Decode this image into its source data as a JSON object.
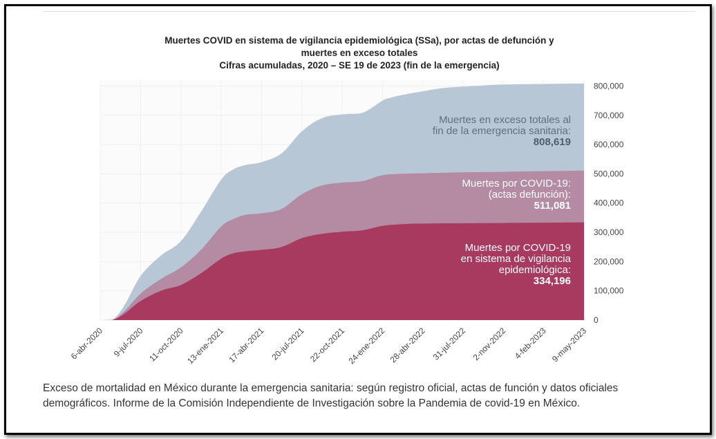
{
  "chart_data": {
    "type": "area",
    "title_lines": [
      "Muertes COVID en sistema de vigilancia epidemiológica (SSa), por actas de defunción y",
      "muertes en exceso totales",
      "Cifras acumuladas, 2020 – SE 19 de 2023 (fin de la emergencia)"
    ],
    "x_tick_labels": [
      "6-abr-2020",
      "9-jul-2020",
      "11-oct-2020",
      "13-ene-2021",
      "17-abr-2021",
      "20-jul-2021",
      "22-oct-2021",
      "24-ene-2022",
      "28-abr-2022",
      "31-jul-2022",
      "2-nov-2022",
      "4-feb-2023",
      "9-may-2023"
    ],
    "y_ticks": [
      0,
      100000,
      200000,
      300000,
      400000,
      500000,
      600000,
      700000,
      800000
    ],
    "y_tick_labels": [
      "0",
      "100,000",
      "200,000",
      "300,000",
      "400,000",
      "500,000",
      "600,000",
      "700,000",
      "800,000"
    ],
    "ylim": [
      0,
      820000
    ],
    "y_axis_side": "right",
    "grid": true,
    "series": [
      {
        "name": "Muertes en exceso totales al fin de la emergencia sanitaria:",
        "label_lines": [
          "Muertes en exceso totales al",
          "fin de la emergencia sanitaria:"
        ],
        "value_label": "808,619",
        "color": "#b7c7d5",
        "x": [
          0,
          0.3,
          0.6,
          1,
          1.5,
          2,
          2.5,
          3,
          3.3,
          3.6,
          4,
          4.5,
          5,
          5.5,
          6,
          6.5,
          7,
          7.2,
          7.5,
          8,
          8.5,
          9,
          9.5,
          10,
          11,
          12
        ],
        "values": [
          0,
          1000,
          50000,
          150000,
          220000,
          270000,
          370000,
          480000,
          515000,
          530000,
          540000,
          570000,
          645000,
          690000,
          703000,
          708000,
          750000,
          760000,
          770000,
          782000,
          793000,
          798000,
          802000,
          805000,
          807000,
          808619
        ]
      },
      {
        "name": "Muertes por COVID-19: (actas defunción):",
        "label_lines": [
          "Muertes por COVID-19:",
          "(actas defunción):"
        ],
        "value_label": "511,081",
        "color": "#b58aa3",
        "x": [
          0,
          0.3,
          0.6,
          1,
          1.5,
          2,
          2.5,
          3,
          3.3,
          3.6,
          4,
          4.5,
          5,
          5.5,
          6,
          6.5,
          7,
          7.5,
          8,
          9,
          10,
          11,
          12
        ],
        "values": [
          0,
          500,
          30000,
          90000,
          140000,
          180000,
          240000,
          320000,
          345000,
          360000,
          365000,
          380000,
          430000,
          460000,
          470000,
          475000,
          495000,
          500000,
          502000,
          505000,
          507000,
          509000,
          511081
        ]
      },
      {
        "name": "Muertes por COVID-19 en sistema de vigilancia epidemiológica:",
        "label_lines": [
          "Muertes por COVID-19",
          "en sistema de vigilancia",
          "epidemiológica:"
        ],
        "value_label": "334,196",
        "color": "#a8395f",
        "x": [
          0,
          0.3,
          0.6,
          1,
          1.5,
          2,
          2.5,
          3,
          3.3,
          3.6,
          4,
          4.5,
          5,
          5.5,
          6,
          6.5,
          7,
          7.5,
          8,
          9,
          10,
          11,
          12
        ],
        "values": [
          0,
          300,
          22000,
          65000,
          100000,
          120000,
          160000,
          210000,
          228000,
          235000,
          240000,
          250000,
          280000,
          295000,
          302000,
          307000,
          322000,
          328000,
          330000,
          331000,
          332000,
          333000,
          334196
        ]
      }
    ]
  },
  "caption": {
    "line1": "Exceso de mortalidad en México durante la emergencia sanitaria: según registro oficial, actas de función y datos oficiales",
    "line2": "demográficos. Informe de la Comisión Independiente de Investigación sobre la Pandemia de covid-19 en México."
  }
}
